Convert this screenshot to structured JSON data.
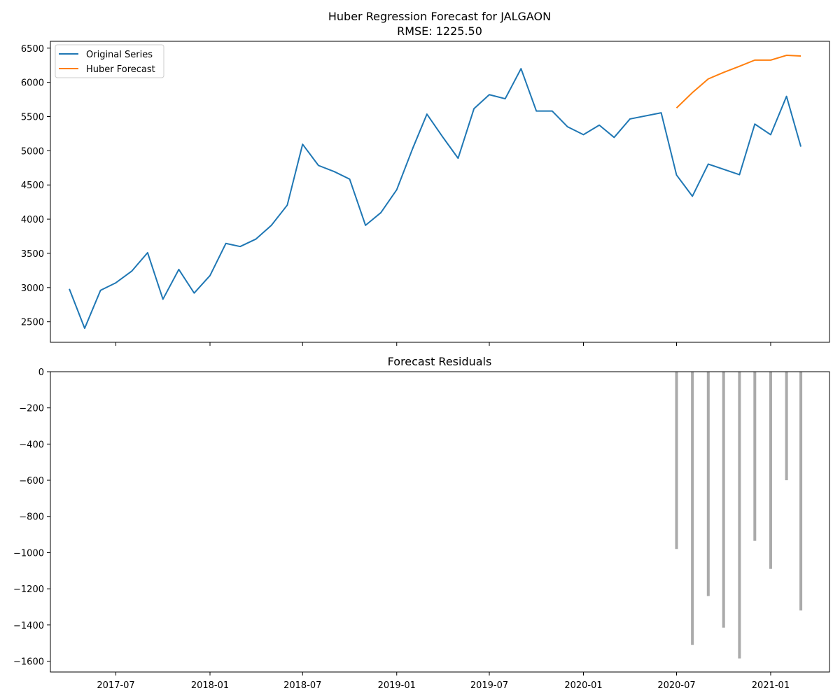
{
  "chart_data": [
    {
      "type": "line",
      "title": "Huber Regression Forecast for JALGAON",
      "subtitle": "RMSE: 1225.50",
      "xlabel": "",
      "ylabel": "",
      "ylim": [
        2200,
        6600
      ],
      "y_ticks": [
        2500,
        3000,
        3500,
        4000,
        4500,
        5000,
        5500,
        6000,
        6500
      ],
      "x_tick_labels": [
        "2017-07",
        "2018-01",
        "2018-07",
        "2019-01",
        "2019-07",
        "2020-01",
        "2020-07",
        "2021-01"
      ],
      "x_tick_dates": [
        "2017-07-01",
        "2018-01-01",
        "2018-07-01",
        "2019-01-01",
        "2019-07-01",
        "2020-01-01",
        "2020-07-01",
        "2021-01-01"
      ],
      "xlim": [
        "2017-02-23",
        "2021-04-26"
      ],
      "grid": false,
      "legend_position": "top-left",
      "series": [
        {
          "name": "Original Series",
          "color": "#1f77b4",
          "x": [
            "2017-04-01",
            "2017-05-01",
            "2017-06-01",
            "2017-07-01",
            "2017-08-01",
            "2017-09-01",
            "2017-10-01",
            "2017-11-01",
            "2017-12-01",
            "2018-01-01",
            "2018-02-01",
            "2018-03-01",
            "2018-04-01",
            "2018-05-01",
            "2018-06-01",
            "2018-07-01",
            "2018-08-01",
            "2018-09-01",
            "2018-10-01",
            "2018-11-01",
            "2018-12-01",
            "2019-01-01",
            "2019-02-01",
            "2019-03-01",
            "2019-04-01",
            "2019-05-01",
            "2019-06-01",
            "2019-07-01",
            "2019-08-01",
            "2019-09-01",
            "2019-10-01",
            "2019-11-01",
            "2019-12-01",
            "2020-01-01",
            "2020-02-01",
            "2020-03-01",
            "2020-04-01",
            "2020-06-01",
            "2020-07-01",
            "2020-08-01",
            "2020-09-01",
            "2020-11-01",
            "2020-12-01",
            "2021-01-01",
            "2021-02-01",
            "2021-03-01"
          ],
          "values": [
            2980,
            2405,
            2960,
            3070,
            3240,
            3510,
            2830,
            3265,
            2920,
            3175,
            3645,
            3600,
            3710,
            3910,
            4205,
            5095,
            4785,
            4695,
            4585,
            3910,
            4095,
            4430,
            5030,
            5535,
            5200,
            4890,
            5615,
            5820,
            5760,
            6200,
            5580,
            5580,
            5350,
            5235,
            5375,
            5195,
            5465,
            5555,
            4645,
            4335,
            4805,
            4650,
            5390,
            5235,
            5795,
            5060
          ]
        },
        {
          "name": "Huber Forecast",
          "color": "#ff7f0e",
          "x": [
            "2020-07-01",
            "2020-08-01",
            "2020-09-01",
            "2020-10-01",
            "2020-11-01",
            "2020-12-01",
            "2021-01-01",
            "2021-02-01",
            "2021-03-01"
          ],
          "values": [
            5625,
            5850,
            6050,
            6145,
            6235,
            6325,
            6325,
            6395,
            6385
          ]
        }
      ]
    },
    {
      "type": "bar",
      "title": "Forecast Residuals",
      "xlabel": "",
      "ylabel": "",
      "ylim": [
        -1660,
        0
      ],
      "y_ticks": [
        0,
        -200,
        -400,
        -600,
        -800,
        -1000,
        -1200,
        -1400,
        -1600
      ],
      "grid": false,
      "bar_color": "#aaaaaa",
      "x": [
        "2020-07-01",
        "2020-08-01",
        "2020-09-01",
        "2020-10-01",
        "2020-11-01",
        "2020-12-01",
        "2021-01-01",
        "2021-02-01",
        "2021-03-01"
      ],
      "values": [
        -980,
        -1510,
        -1240,
        -1415,
        -1585,
        -935,
        -1090,
        -600,
        -1320
      ]
    }
  ]
}
